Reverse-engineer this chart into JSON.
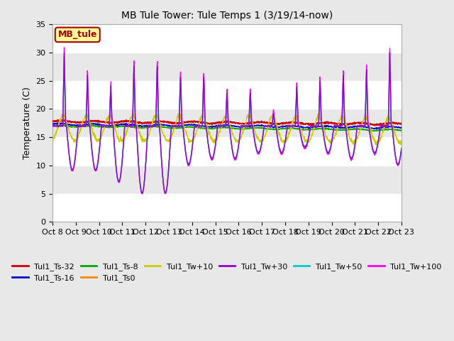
{
  "title": "MB Tule Tower: Tule Temps 1 (3/19/14-now)",
  "ylabel": "Temperature (C)",
  "ylim": [
    0,
    35
  ],
  "yticks": [
    0,
    5,
    10,
    15,
    20,
    25,
    30,
    35
  ],
  "xtick_labels": [
    "Oct 8",
    "Oct 9",
    "Oct 10",
    "Oct 11",
    "Oct 12",
    "Oct 13",
    "Oct 14",
    "Oct 15",
    "Oct 16",
    "Oct 17",
    "Oct 18",
    "Oct 19",
    "Oct 20",
    "Oct 21",
    "Oct 22",
    "Oct 23"
  ],
  "bg_color": "#e8e8e8",
  "plot_bg": "#e8e8e8",
  "hband_color": "#ffffff",
  "series_colors": {
    "Tul1_Ts-32": "#cc0000",
    "Tul1_Ts-16": "#0000cc",
    "Tul1_Ts-8": "#00aa00",
    "Tul1_Ts0": "#ff8800",
    "Tul1_Tw+10": "#cccc00",
    "Tul1_Tw+30": "#9900cc",
    "Tul1_Tw+50": "#00cccc",
    "Tul1_Tw+100": "#ff00ff"
  },
  "legend_box_facecolor": "#ffff99",
  "legend_box_edgecolor": "#aa0000",
  "legend_text_color": "#aa0000"
}
